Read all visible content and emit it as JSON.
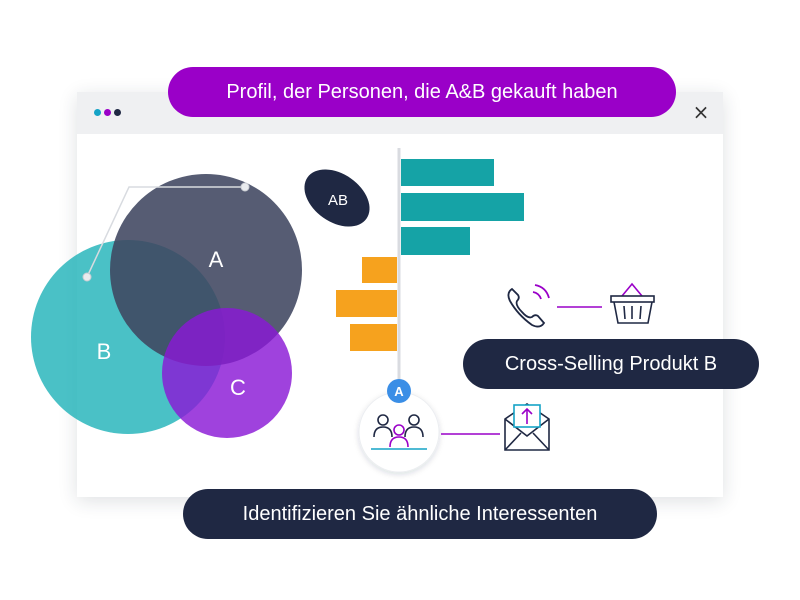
{
  "window": {
    "dot_colors": [
      "#15a3c6",
      "#9a00c8",
      "#1f2843"
    ],
    "close_glyph": "×"
  },
  "labels": {
    "top_banner": "Profil, der Personen, die A&B gekauft haben",
    "cross_selling": "Cross-Selling Produkt B",
    "bottom_banner": "Identifizieren Sie ähnliche Interessenten"
  },
  "venn": {
    "circle_a": "A",
    "circle_b": "B",
    "circle_c": "C",
    "ab_badge": "AB",
    "colors": {
      "a": "#3f4660",
      "b": "#22b3b9",
      "c": "#8a19d6",
      "ab_badge": "#1f2843"
    }
  },
  "bars": {
    "teal_color": "#15a3a6",
    "orange_color": "#f6a21e"
  },
  "node": {
    "badge_label": "A",
    "badge_color": "#3a8ee6"
  },
  "icons": {
    "phone": "phone-ringing-icon",
    "basket": "shopping-basket-icon",
    "people": "audience-group-icon",
    "mail": "envelope-upload-icon"
  },
  "accent": "#9a00c8"
}
